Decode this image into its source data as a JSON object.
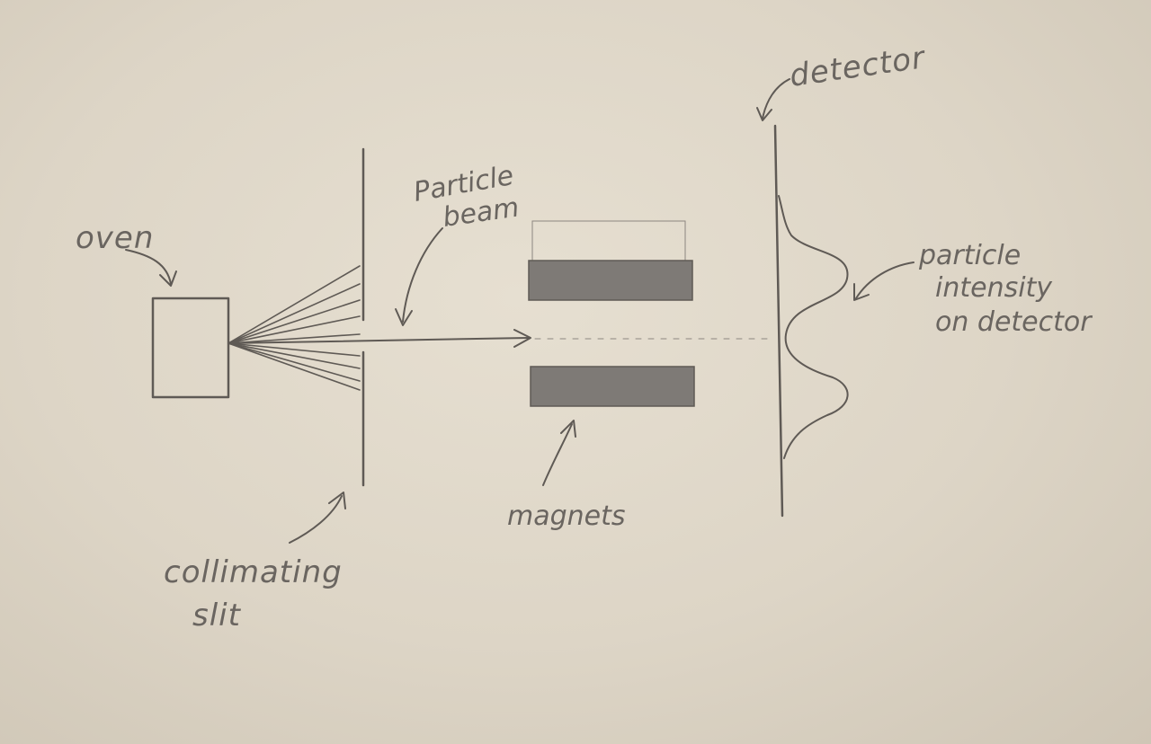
{
  "labels": {
    "oven": "oven",
    "particle_beam_line1": "Particle",
    "particle_beam_line2": "beam",
    "detector": "detector",
    "intensity_line1": "particle",
    "intensity_line2": "intensity",
    "intensity_line3": "on detector",
    "magnets": "magnets",
    "collimating_line1": "collimating",
    "collimating_line2": "slit"
  }
}
